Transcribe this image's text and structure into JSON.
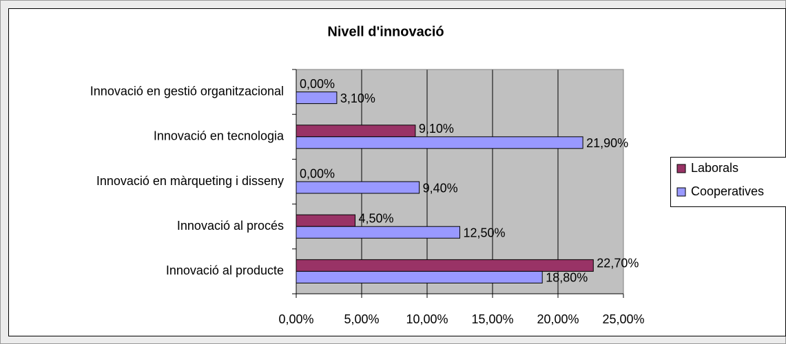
{
  "chart_data": {
    "type": "bar",
    "orientation": "horizontal",
    "title": "Nivell d'innovació",
    "categories": [
      "Innovació en gestió organitzacional",
      "Innovació en tecnologia",
      "Innovació en màrqueting i disseny",
      "Innovació al procés",
      "Innovació al producte"
    ],
    "series": [
      {
        "name": "Laborals",
        "color": "#993366",
        "values": [
          0,
          9.1,
          0,
          4.5,
          22.7
        ],
        "value_labels": [
          "0,00%",
          "9,10%",
          "0,00%",
          "4,50%",
          "22,70%"
        ]
      },
      {
        "name": "Cooperatives",
        "color": "#9999ff",
        "values": [
          3.1,
          21.9,
          9.4,
          12.5,
          18.8
        ],
        "value_labels": [
          "3,10%",
          "21,90%",
          "9,40%",
          "12,50%",
          "18,80%"
        ]
      }
    ],
    "xlim": [
      0,
      25
    ],
    "xticks": [
      {
        "value": 0,
        "label": "0,00%"
      },
      {
        "value": 5,
        "label": "5,00%"
      },
      {
        "value": 10,
        "label": "10,00%"
      },
      {
        "value": 15,
        "label": "15,00%"
      },
      {
        "value": 20,
        "label": "20,00%"
      },
      {
        "value": 25,
        "label": "25,00%"
      }
    ],
    "grid": true,
    "legend": "right"
  }
}
